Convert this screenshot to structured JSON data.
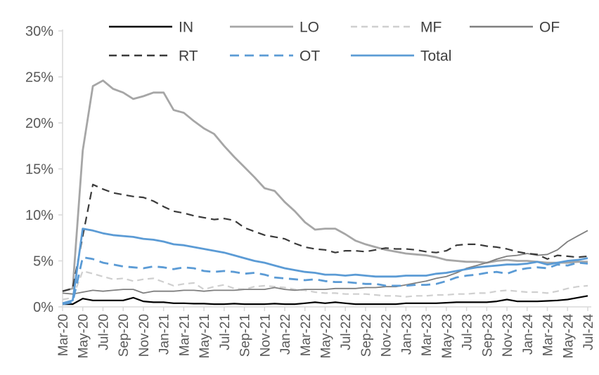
{
  "chart_data": {
    "type": "line",
    "title": "",
    "xlabel": "",
    "ylabel": "",
    "ylim": [
      0,
      30
    ],
    "y_tick_labels": [
      "0%",
      "5%",
      "10%",
      "15%",
      "20%",
      "25%",
      "30%"
    ],
    "y_tick_values": [
      0,
      5,
      10,
      15,
      20,
      25,
      30
    ],
    "x_tick_labels": [
      "Mar-20",
      "May-20",
      "Jul-20",
      "Sep-20",
      "Nov-20",
      "Jan-21",
      "Mar-21",
      "May-21",
      "Jul-21",
      "Sep-21",
      "Nov-21",
      "Jan-22",
      "Mar-22",
      "May-22",
      "Jul-22",
      "Sep-22",
      "Nov-22",
      "Jan-23",
      "Mar-23",
      "May-23",
      "Jul-23",
      "Sep-23",
      "Nov-23",
      "Jan-24",
      "Mar-24",
      "May-24",
      "Jul-24"
    ],
    "x_months_per_tick": 2,
    "n_points": 53,
    "grid": false,
    "legend_position": "top",
    "axis_color": "#d9d9d9",
    "label_color": "#595959",
    "legend_text_color": "#404040",
    "legend_rows": [
      [
        "IN",
        "LO",
        "MF",
        "OF"
      ],
      [
        "RT",
        "OT",
        "Total"
      ]
    ],
    "series": [
      {
        "name": "IN",
        "color": "#000000",
        "dash": "",
        "width": 2.2,
        "values": [
          0.3,
          0.3,
          0.9,
          0.7,
          0.7,
          0.7,
          0.7,
          1.0,
          0.6,
          0.5,
          0.5,
          0.4,
          0.4,
          0.35,
          0.35,
          0.3,
          0.3,
          0.35,
          0.3,
          0.3,
          0.3,
          0.35,
          0.3,
          0.3,
          0.4,
          0.5,
          0.4,
          0.5,
          0.4,
          0.3,
          0.3,
          0.3,
          0.3,
          0.3,
          0.4,
          0.4,
          0.4,
          0.4,
          0.45,
          0.5,
          0.5,
          0.5,
          0.5,
          0.6,
          0.8,
          0.6,
          0.6,
          0.6,
          0.65,
          0.7,
          0.8,
          1.0,
          1.2
        ]
      },
      {
        "name": "LO",
        "color": "#a6a6a6",
        "dash": "",
        "width": 2.8,
        "values": [
          1.7,
          2.0,
          17.0,
          24.0,
          24.6,
          23.7,
          23.3,
          22.6,
          22.9,
          23.3,
          23.3,
          21.4,
          21.1,
          20.2,
          19.4,
          18.8,
          17.5,
          16.3,
          15.2,
          14.1,
          12.9,
          12.6,
          11.4,
          10.4,
          9.2,
          8.4,
          8.5,
          8.5,
          7.9,
          7.2,
          6.8,
          6.5,
          6.2,
          6.0,
          5.8,
          5.7,
          5.6,
          5.4,
          5.1,
          5.0,
          4.9,
          4.9,
          4.8,
          5.0,
          5.1,
          5.0,
          5.0,
          4.9,
          4.8,
          4.8,
          4.8,
          4.9,
          4.9
        ]
      },
      {
        "name": "MF",
        "color": "#cfcfcf",
        "dash": "9 6",
        "width": 2.2,
        "values": [
          0.8,
          1.0,
          3.9,
          3.6,
          3.3,
          3.0,
          3.1,
          2.8,
          3.0,
          3.1,
          2.7,
          2.3,
          2.5,
          2.6,
          1.9,
          2.2,
          2.4,
          2.0,
          1.9,
          2.2,
          2.3,
          2.2,
          2.1,
          1.9,
          1.8,
          1.6,
          1.5,
          1.5,
          1.4,
          1.4,
          1.4,
          1.3,
          1.2,
          1.2,
          1.1,
          1.2,
          1.2,
          1.3,
          1.3,
          1.4,
          1.4,
          1.5,
          1.5,
          1.7,
          1.8,
          1.7,
          1.6,
          1.6,
          1.5,
          1.7,
          2.0,
          2.2,
          2.3
        ]
      },
      {
        "name": "OF",
        "color": "#7f7f7f",
        "dash": "",
        "width": 1.8,
        "values": [
          1.5,
          1.4,
          1.6,
          1.8,
          1.7,
          1.8,
          1.9,
          1.9,
          1.5,
          1.7,
          1.7,
          1.7,
          1.8,
          1.8,
          1.7,
          1.8,
          1.8,
          1.8,
          1.9,
          1.9,
          1.9,
          2.1,
          1.9,
          1.8,
          1.9,
          1.9,
          1.9,
          2.0,
          2.0,
          2.0,
          2.1,
          2.1,
          2.2,
          2.2,
          2.4,
          2.6,
          2.8,
          3.1,
          3.3,
          3.7,
          4.2,
          4.5,
          4.8,
          5.2,
          5.5,
          5.6,
          5.8,
          5.6,
          5.7,
          6.2,
          7.1,
          7.7,
          8.3
        ]
      },
      {
        "name": "RT",
        "color": "#3a3a3a",
        "dash": "11 7",
        "width": 2.2,
        "values": [
          1.7,
          2.0,
          7.7,
          13.3,
          12.8,
          12.4,
          12.2,
          12.0,
          11.9,
          11.5,
          10.9,
          10.4,
          10.2,
          9.9,
          9.7,
          9.5,
          9.6,
          9.4,
          8.6,
          8.2,
          7.8,
          7.6,
          7.4,
          6.9,
          6.5,
          6.3,
          6.2,
          5.9,
          6.1,
          6.1,
          6.0,
          6.2,
          6.4,
          6.3,
          6.3,
          6.2,
          6.0,
          5.9,
          6.1,
          6.7,
          6.8,
          6.8,
          6.6,
          6.5,
          6.3,
          6.0,
          5.8,
          5.7,
          5.2,
          5.6,
          5.5,
          5.4,
          5.5
        ]
      },
      {
        "name": "OT",
        "color": "#5b9bd5",
        "dash": "13 8",
        "width": 2.8,
        "values": [
          0.3,
          0.5,
          5.4,
          5.2,
          4.8,
          4.6,
          4.4,
          4.3,
          4.2,
          4.4,
          4.3,
          4.1,
          4.3,
          4.2,
          3.9,
          3.8,
          3.9,
          3.8,
          3.6,
          3.7,
          3.5,
          3.2,
          3.1,
          3.0,
          2.9,
          3.0,
          2.8,
          2.7,
          2.7,
          2.6,
          2.5,
          2.5,
          2.3,
          2.3,
          2.3,
          2.4,
          2.4,
          2.5,
          2.8,
          3.2,
          3.4,
          3.5,
          3.7,
          3.8,
          3.6,
          4.0,
          4.2,
          4.3,
          4.2,
          4.6,
          4.5,
          4.8,
          4.7
        ]
      },
      {
        "name": "Total",
        "color": "#5b9bd5",
        "dash": "",
        "width": 2.8,
        "values": [
          0.4,
          0.7,
          8.5,
          8.3,
          8.0,
          7.8,
          7.7,
          7.6,
          7.4,
          7.3,
          7.1,
          6.8,
          6.7,
          6.5,
          6.3,
          6.1,
          5.9,
          5.6,
          5.3,
          5.0,
          4.8,
          4.5,
          4.2,
          4.0,
          3.8,
          3.7,
          3.5,
          3.5,
          3.4,
          3.5,
          3.4,
          3.3,
          3.3,
          3.3,
          3.4,
          3.4,
          3.4,
          3.6,
          3.7,
          3.9,
          4.1,
          4.3,
          4.4,
          4.5,
          4.6,
          4.6,
          4.7,
          4.9,
          4.6,
          4.8,
          5.0,
          5.1,
          5.3
        ]
      }
    ]
  }
}
